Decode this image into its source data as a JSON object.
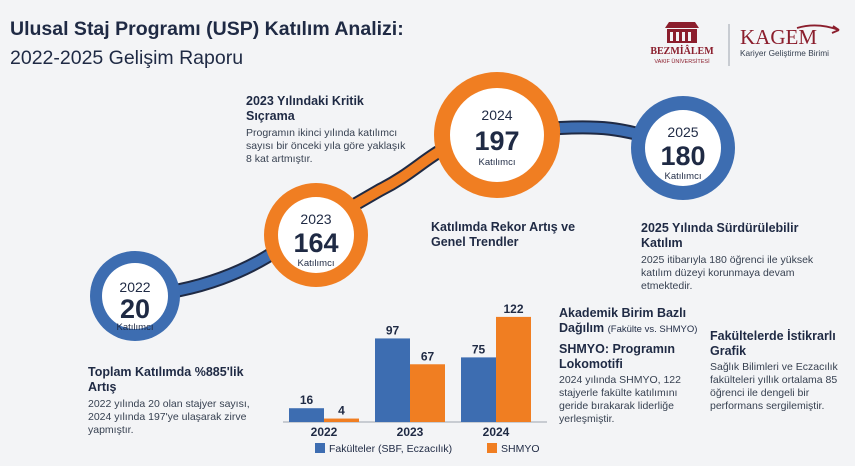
{
  "header": {
    "title_line1": "Ulusal Staj Programı (USP) Katılım Analizi:",
    "title_line2": "2022-2025 Gelişim Raporu"
  },
  "logos": {
    "bezmialem_name": "BEZMİÂLEM",
    "bezmialem_sub": "VAKIF ÜNİVERSİTESİ",
    "kagem_name": "KAGEM",
    "kagem_sub": "Kariyer Geliştirme Birimi"
  },
  "colors": {
    "blue": "#3d6db1",
    "orange": "#f07e22",
    "navy": "#1f2a44"
  },
  "timeline": [
    {
      "year": "2022",
      "value": "20",
      "label": "Katılımcı",
      "color": "blue"
    },
    {
      "year": "2023",
      "value": "164",
      "label": "Katılımcı",
      "color": "orange"
    },
    {
      "year": "2024",
      "value": "197",
      "label": "Katılımcı",
      "color": "orange"
    },
    {
      "year": "2025",
      "value": "180",
      "label": "Katılımcı",
      "color": "blue"
    }
  ],
  "blocks": {
    "b2023": {
      "title": "2023 Yılındaki Kritik Sıçrama",
      "body": "Programın ikinci yılında katılımcı sayısı bir önceki yıla göre yaklaşık 8 kat artmıştır."
    },
    "record": {
      "title": "Katılımda Rekor Artış ve Genel Trendler"
    },
    "b2025": {
      "title": "2025 Yılında Sürdürülebilir Katılım",
      "body": "2025 itibarıyla 180 öğrenci ile yüksek katılım düzeyi korunmaya devam etmektedir."
    },
    "total": {
      "title": "Toplam Katılımda %885'lik Artış",
      "body": "2022 yılında 20 olan stajyer sayısı, 2024 yılında 197'ye ulaşarak zirve yapmıştır."
    },
    "academic": {
      "title": "Akademik Birim Bazlı Dağılım",
      "title_note": "(Fakülte vs. SHMYO)"
    },
    "shmyo": {
      "title": "SHMYO: Programın Lokomotifi",
      "body": "2024 yılında SHMYO, 122 stajyerle fakülte katılımını geride bırakarak liderliğe yerleşmiştir."
    },
    "faculty": {
      "title": "Fakültelerde İstikrarlı Grafik",
      "body": "Sağlık Bilimleri ve Eczacılık fakülteleri yıllık ortalama 85 öğrenci ile dengeli bir performans sergilemiştir."
    }
  },
  "chart_data": {
    "type": "bar",
    "categories": [
      "2022",
      "2023",
      "2024"
    ],
    "series": [
      {
        "name": "Fakülteler (SBF, Eczacılık)",
        "values": [
          16,
          97,
          75
        ],
        "color": "#3d6db1"
      },
      {
        "name": "SHMYO",
        "values": [
          4,
          67,
          122
        ],
        "color": "#f07e22"
      }
    ],
    "ylim": [
      0,
      130
    ],
    "legend_position": "bottom",
    "grid": false
  }
}
